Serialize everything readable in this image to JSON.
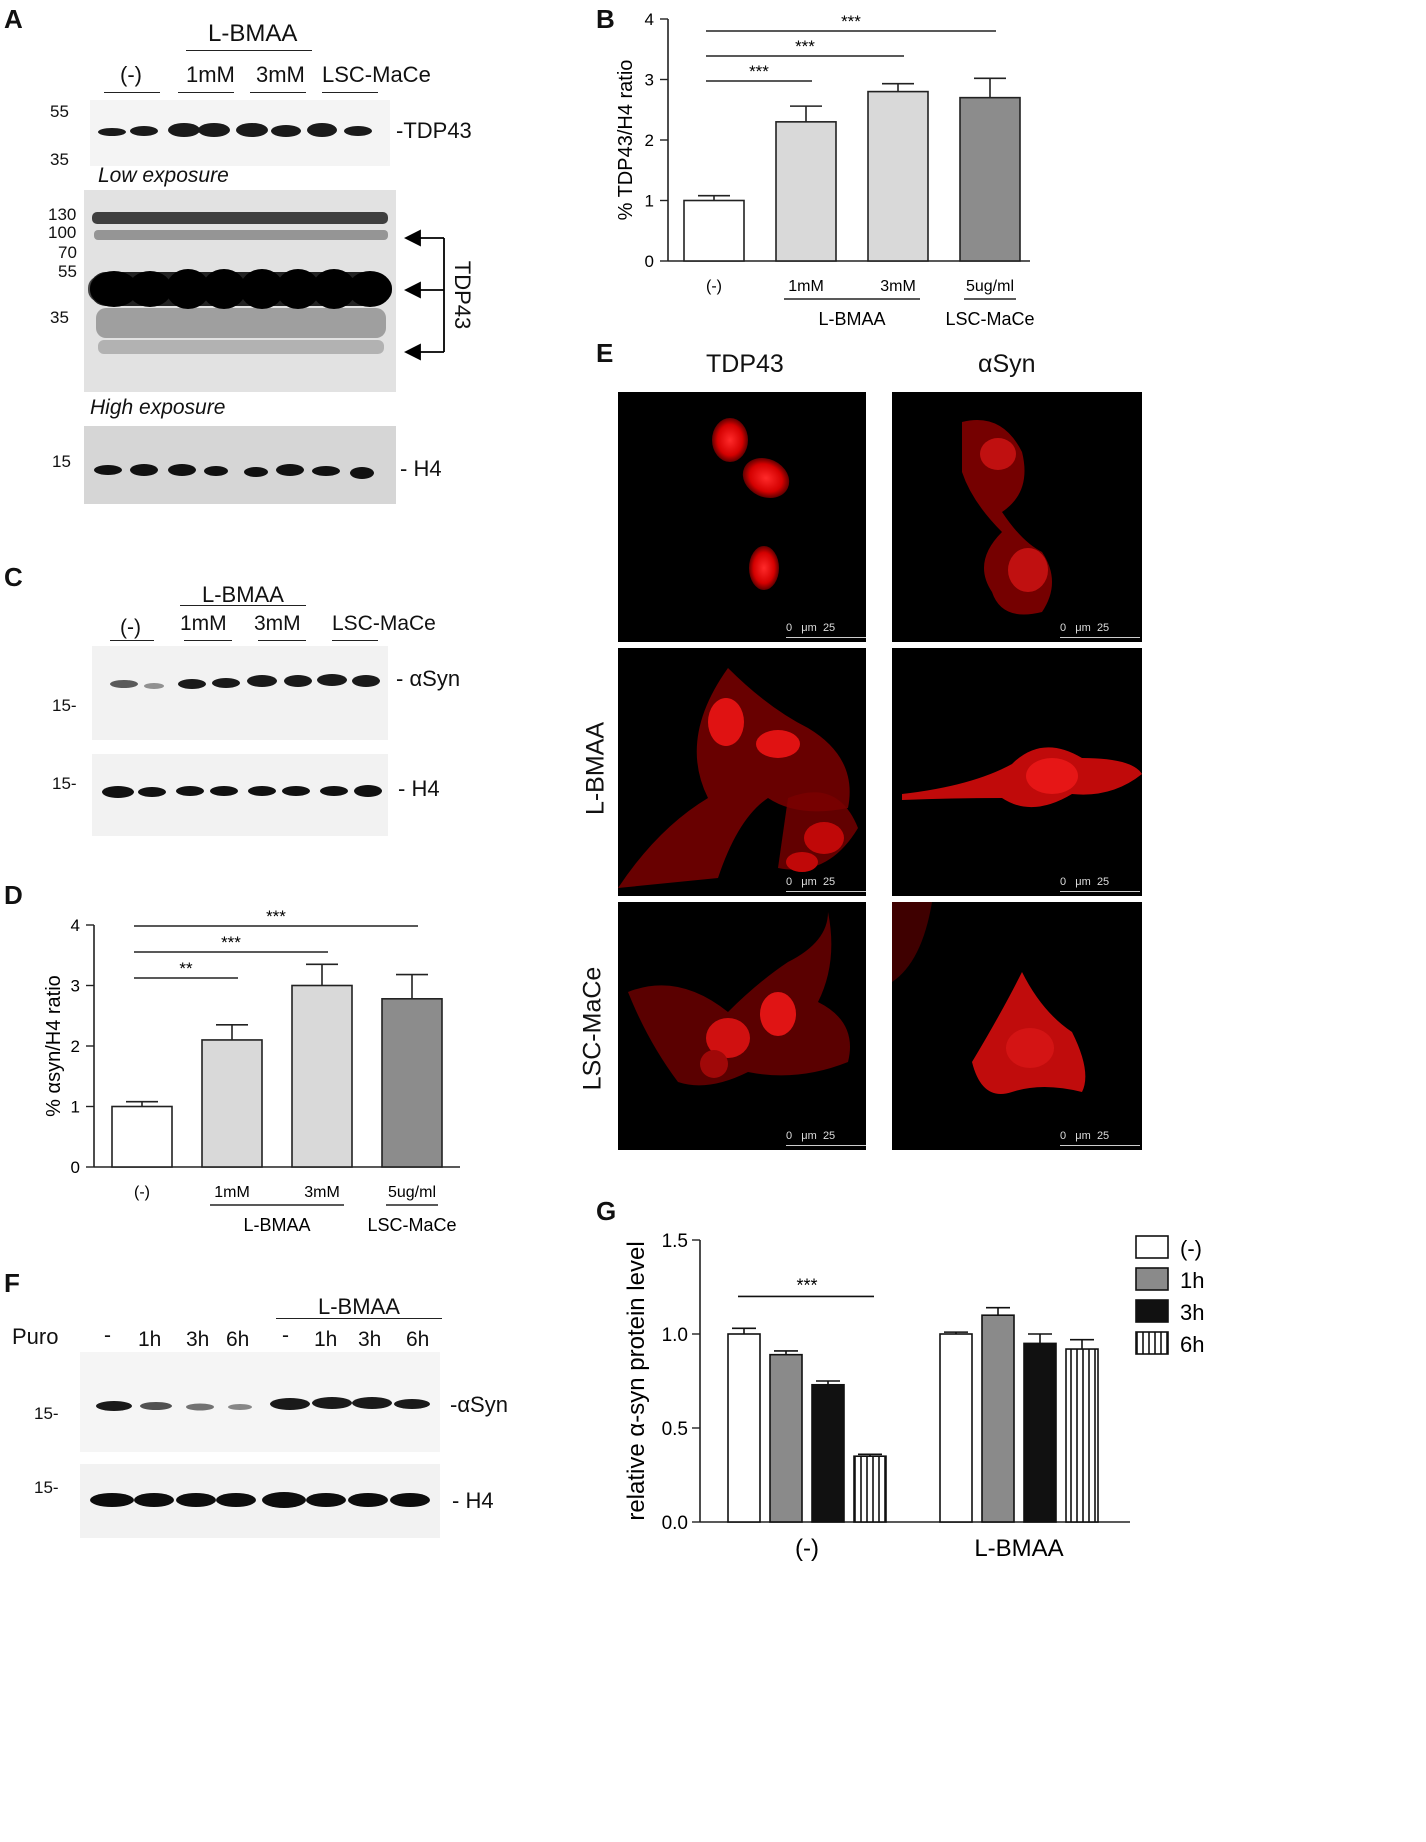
{
  "panels": {
    "A": {
      "label": "A",
      "treatment_header": "L-BMAA",
      "lanes": [
        "(-)",
        "1mM",
        "3mM",
        "LSC-MaCe"
      ],
      "markers_top": [
        "55",
        "35"
      ],
      "band_top": "-TDP43",
      "low_exposure": "Low exposure",
      "markers_mid": [
        "130",
        "100",
        "70",
        "55",
        "35"
      ],
      "band_mid": "TDP43",
      "high_exposure": "High exposure",
      "markers_bot": [
        "15"
      ],
      "band_bot": "- H4"
    },
    "C": {
      "label": "C",
      "treatment_header": "L-BMAA",
      "lanes": [
        "(-)",
        "1mM",
        "3mM",
        "LSC-MaCe"
      ],
      "marker_1": "15-",
      "band_1": "- αSyn",
      "marker_2": "15-",
      "band_2": "- H4"
    },
    "F": {
      "label": "F",
      "puro": "Puro",
      "treatment_header": "L-BMAA",
      "lanes": [
        "-",
        "1h",
        "3h",
        "6h",
        "-",
        "1h",
        "3h",
        "6h"
      ],
      "marker_1": "15-",
      "band_1": "-αSyn",
      "marker_2": "15-",
      "band_2": "- H4"
    },
    "E": {
      "label": "E",
      "col_headers": [
        "TDP43",
        "αSyn"
      ],
      "row_labels": [
        "L-BMAA",
        "LSC-MaCe"
      ],
      "scale": {
        "zero": "0",
        "unit": "μm",
        "max": "25"
      }
    }
  },
  "chart_data": [
    {
      "panel": "B",
      "type": "bar",
      "ylabel": "% TDP43/H4 ratio",
      "categories": [
        "(-)",
        "1mM",
        "3mM",
        "5ug/ml"
      ],
      "values": [
        1.0,
        2.3,
        2.8,
        2.7
      ],
      "errors": [
        0.08,
        0.26,
        0.13,
        0.32
      ],
      "colors": [
        "#ffffff",
        "#d9d9d9",
        "#d9d9d9",
        "#8c8c8c"
      ],
      "ylim": [
        0,
        4
      ],
      "yticks": [
        "0",
        "1",
        "2",
        "3",
        "4"
      ],
      "groups": [
        {
          "label": "L-BMAA",
          "from": 1,
          "to": 2
        },
        {
          "label": "LSC-MaCe",
          "from": 3,
          "to": 3
        }
      ],
      "significance": [
        {
          "from": 0,
          "to": 1,
          "label": "***"
        },
        {
          "from": 0,
          "to": 2,
          "label": "***"
        },
        {
          "from": 0,
          "to": 3,
          "label": "***"
        }
      ]
    },
    {
      "panel": "D",
      "type": "bar",
      "ylabel": "% αsyn/H4 ratio",
      "categories": [
        "(-)",
        "1mM",
        "3mM",
        "5ug/ml"
      ],
      "values": [
        1.0,
        2.1,
        3.0,
        2.78
      ],
      "errors": [
        0.08,
        0.25,
        0.35,
        0.4
      ],
      "colors": [
        "#ffffff",
        "#d9d9d9",
        "#d9d9d9",
        "#8c8c8c"
      ],
      "ylim": [
        0,
        4
      ],
      "yticks": [
        "0",
        "1",
        "2",
        "3",
        "4"
      ],
      "groups": [
        {
          "label": "L-BMAA",
          "from": 1,
          "to": 2
        },
        {
          "label": "LSC-MaCe",
          "from": 3,
          "to": 3
        }
      ],
      "significance": [
        {
          "from": 0,
          "to": 1,
          "label": "**"
        },
        {
          "from": 0,
          "to": 2,
          "label": "***"
        },
        {
          "from": 0,
          "to": 3,
          "label": "***"
        }
      ]
    },
    {
      "panel": "G",
      "type": "bar",
      "ylabel": "relative α-syn protein level",
      "groups": [
        "(-)",
        "L-BMAA"
      ],
      "ylim": [
        0,
        1.5
      ],
      "yticks": [
        "0.0",
        "0.5",
        "1.0",
        "1.5"
      ],
      "series": [
        {
          "name": "(-)",
          "values": [
            1.0,
            1.0
          ],
          "errors": [
            0.03,
            0.01
          ],
          "fill": "white"
        },
        {
          "name": "1h",
          "values": [
            0.89,
            1.1
          ],
          "errors": [
            0.02,
            0.04
          ],
          "fill": "gray"
        },
        {
          "name": "3h",
          "values": [
            0.73,
            0.95
          ],
          "errors": [
            0.02,
            0.05
          ],
          "fill": "black"
        },
        {
          "name": "6h",
          "values": [
            0.35,
            0.92
          ],
          "errors": [
            0.01,
            0.05
          ],
          "fill": "stripes"
        }
      ],
      "significance": [
        {
          "label": "***"
        }
      ]
    }
  ],
  "panel_letters": {
    "B": "B",
    "D": "D",
    "G": "G"
  }
}
